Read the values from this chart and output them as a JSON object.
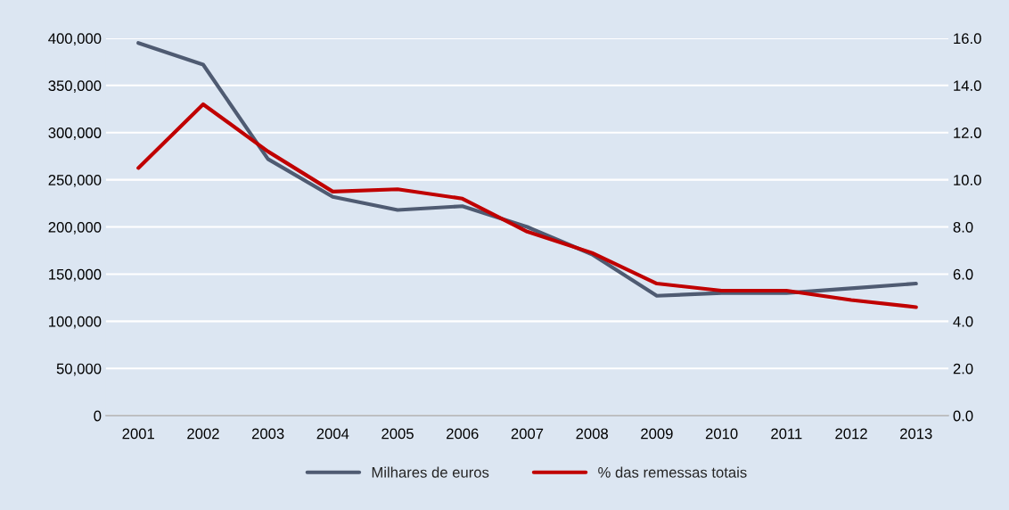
{
  "chart_data": {
    "type": "line",
    "categories": [
      "2001",
      "2002",
      "2003",
      "2004",
      "2005",
      "2006",
      "2007",
      "2008",
      "2009",
      "2010",
      "2011",
      "2012",
      "2013"
    ],
    "series": [
      {
        "name": "Milhares de euros",
        "color": "#4f5b72",
        "values": [
          395000,
          372000,
          272000,
          232000,
          218000,
          222000,
          200000,
          171000,
          127000,
          130000,
          130000,
          135000,
          140000
        ]
      },
      {
        "name": "% das remessas totais",
        "color": "#c00000",
        "axis": "y2",
        "values": [
          10.5,
          13.2,
          11.2,
          9.5,
          9.6,
          9.2,
          7.8,
          6.9,
          5.6,
          5.3,
          5.3,
          4.9,
          4.6
        ]
      }
    ],
    "ylim": [
      0,
      400000
    ],
    "yticks": [
      {
        "value": 0,
        "label": "0"
      },
      {
        "value": 50000,
        "label": "50,000"
      },
      {
        "value": 100000,
        "label": "100,000"
      },
      {
        "value": 150000,
        "label": "150,000"
      },
      {
        "value": 200000,
        "label": "200,000"
      },
      {
        "value": 250000,
        "label": "250,000"
      },
      {
        "value": 300000,
        "label": "300,000"
      },
      {
        "value": 350000,
        "label": "350,000"
      },
      {
        "value": 400000,
        "label": "400,000"
      }
    ],
    "y2lim": [
      0,
      16
    ],
    "y2ticks": [
      {
        "value": 0,
        "label": "0.0"
      },
      {
        "value": 2,
        "label": "2.0"
      },
      {
        "value": 4,
        "label": "4.0"
      },
      {
        "value": 6,
        "label": "6.0"
      },
      {
        "value": 8,
        "label": "8.0"
      },
      {
        "value": 10,
        "label": "10.0"
      },
      {
        "value": 12,
        "label": "12.0"
      },
      {
        "value": 14,
        "label": "14.0"
      },
      {
        "value": 16,
        "label": "16.0"
      }
    ],
    "grid": "y",
    "legend": "bottom"
  }
}
